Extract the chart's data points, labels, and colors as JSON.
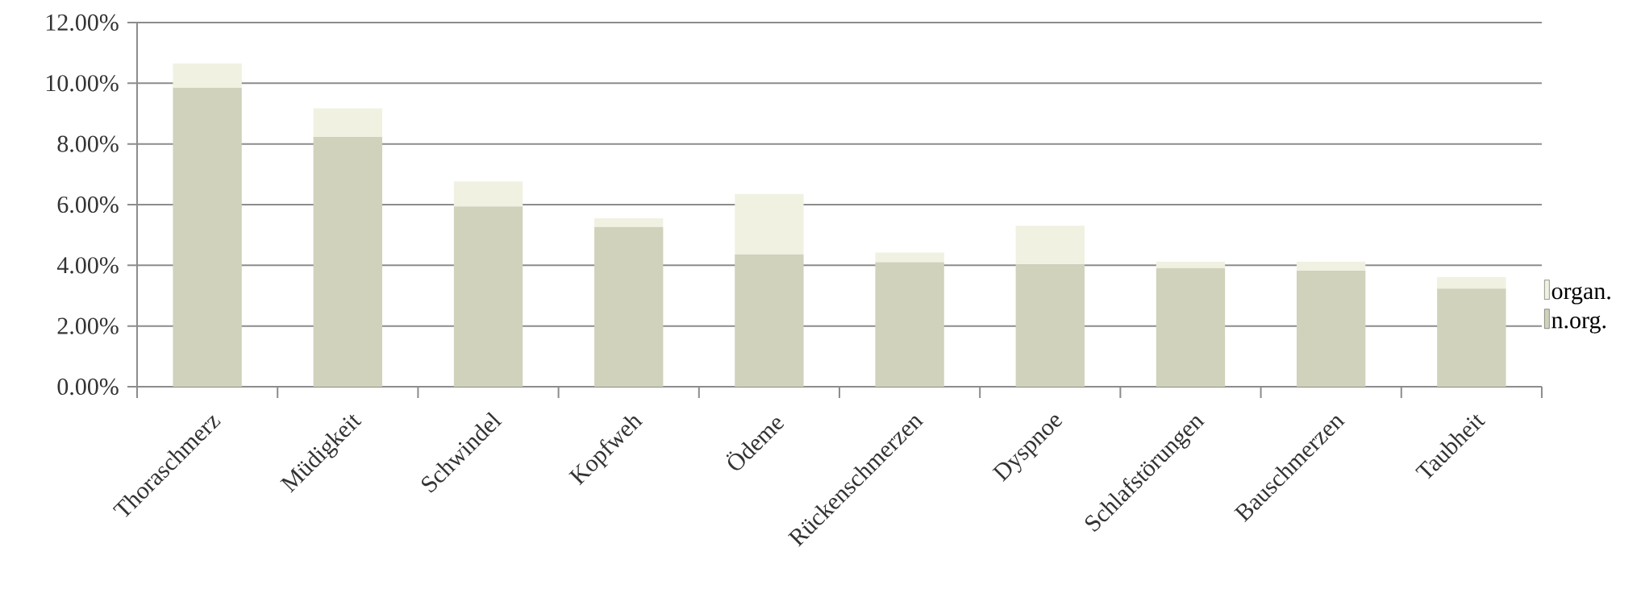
{
  "chart_data": {
    "type": "bar",
    "stacked": true,
    "categories": [
      "Thoraschmerz",
      "Müdigkeit",
      "Schwindel",
      "Kopfweh",
      "Ödeme",
      "Rückenschmerzen",
      "Dyspnoe",
      "Schlafstörungen",
      "Bauschmerzen",
      "Taubheit"
    ],
    "series": [
      {
        "name": "n.org.",
        "color": "#d0d2bc",
        "values": [
          9.85,
          8.23,
          5.94,
          5.26,
          4.36,
          4.1,
          4.03,
          3.91,
          3.82,
          3.23
        ]
      },
      {
        "name": "organ.",
        "color": "#f0f1e1",
        "values": [
          0.8,
          0.94,
          0.82,
          0.29,
          1.99,
          0.32,
          1.27,
          0.21,
          0.3,
          0.38
        ]
      }
    ],
    "ylim": [
      0,
      12
    ],
    "yticks": [
      {
        "value": 0,
        "label": "0.00%"
      },
      {
        "value": 2,
        "label": "2.00%"
      },
      {
        "value": 4,
        "label": "4.00%"
      },
      {
        "value": 6,
        "label": "6.00%"
      },
      {
        "value": 8,
        "label": "8.00%"
      },
      {
        "value": 10,
        "label": "10.00%"
      },
      {
        "value": 12,
        "label": "12.00%"
      }
    ],
    "grid": "y",
    "legend": "right"
  }
}
